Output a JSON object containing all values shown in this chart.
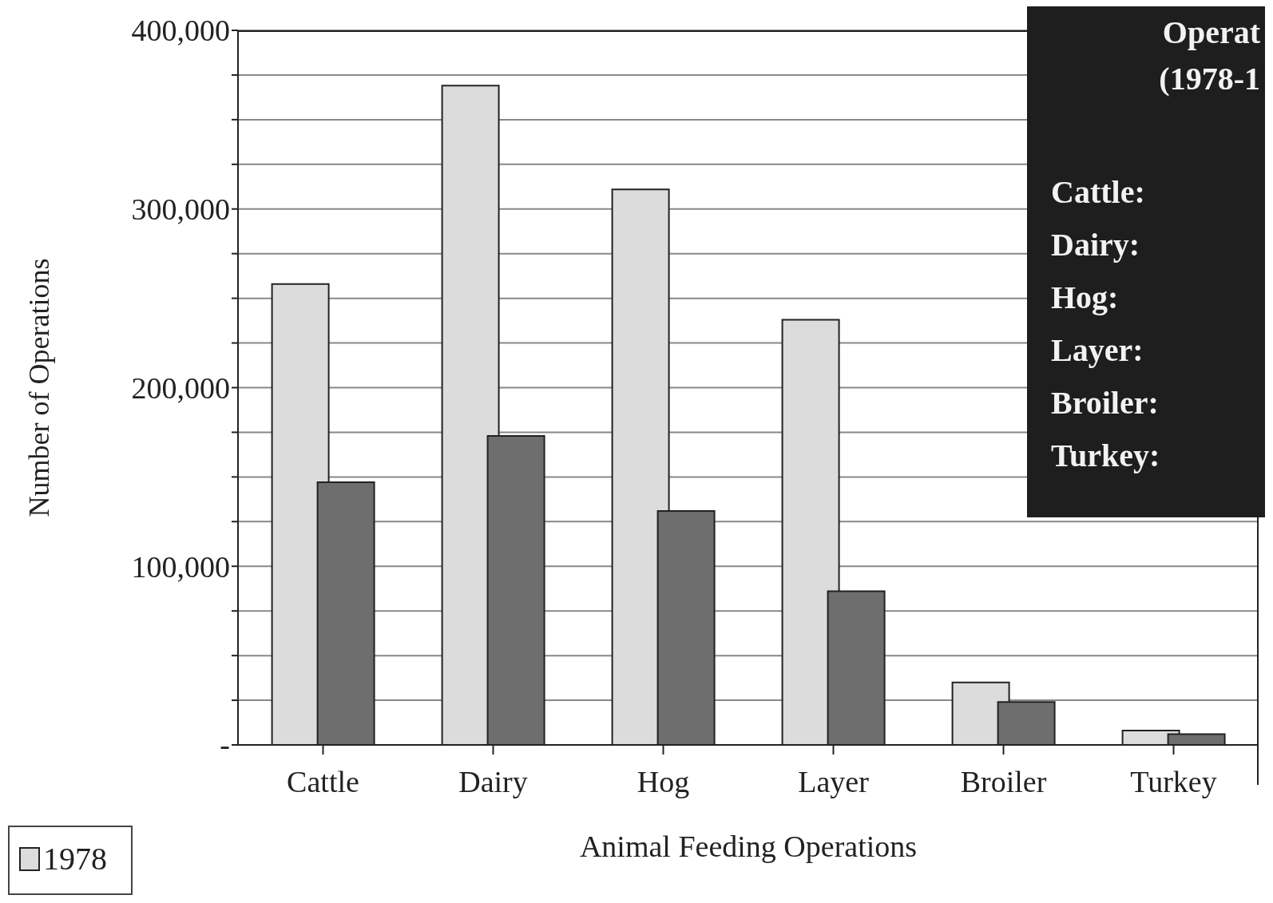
{
  "chart_data": {
    "type": "bar",
    "xlabel": "Animal Feeding Operations",
    "ylabel": "Number of Operations",
    "categories": [
      "Cattle",
      "Dairy",
      "Hog",
      "Layer",
      "Broiler",
      "Turkey"
    ],
    "series": [
      {
        "name": "1978",
        "color": "#dcdcdc",
        "values": [
          258000,
          369000,
          311000,
          238000,
          35000,
          8000
        ]
      },
      {
        "color": "#6e6e6e",
        "values": [
          147000,
          173000,
          131000,
          86000,
          24000,
          6000
        ]
      }
    ],
    "ylim": [
      0,
      400000
    ],
    "yticks": [
      {
        "value": 0,
        "label": "-"
      },
      {
        "value": 25000,
        "label": null
      },
      {
        "value": 50000,
        "label": null
      },
      {
        "value": 75000,
        "label": null
      },
      {
        "value": 100000,
        "label": "100,000"
      },
      {
        "value": 125000,
        "label": null
      },
      {
        "value": 150000,
        "label": null
      },
      {
        "value": 175000,
        "label": null
      },
      {
        "value": 200000,
        "label": "200,000"
      },
      {
        "value": 225000,
        "label": null
      },
      {
        "value": 250000,
        "label": null
      },
      {
        "value": 275000,
        "label": null
      },
      {
        "value": 300000,
        "label": "300,000"
      },
      {
        "value": 325000,
        "label": null
      },
      {
        "value": 350000,
        "label": null
      },
      {
        "value": 375000,
        "label": null
      },
      {
        "value": 400000,
        "label": "400,000"
      }
    ],
    "grid": "y",
    "legend": "bottom left",
    "annotations": [
      "Operat",
      "(1978-1",
      "Cattle:",
      "Dairy:",
      "Hog:",
      "Layer:",
      "Broiler:",
      "Turkey:"
    ]
  }
}
